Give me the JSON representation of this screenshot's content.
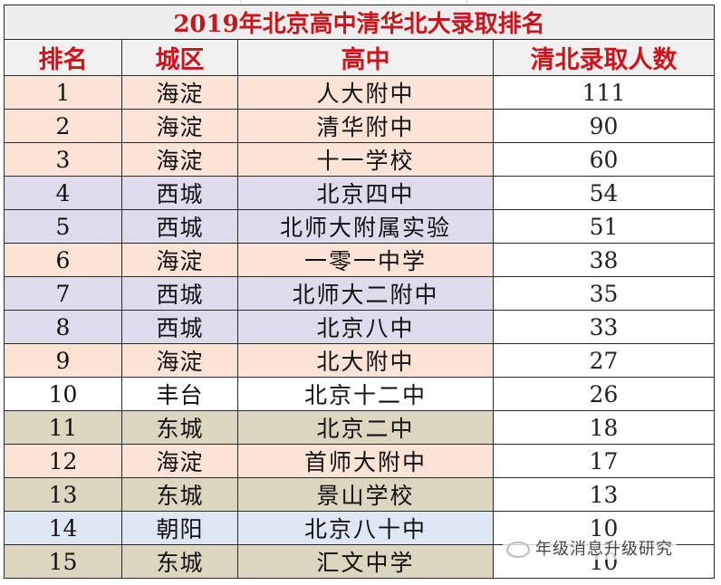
{
  "title": "2019年北京高中清华北大录取排名",
  "headers": {
    "rank": "排名",
    "district": "城区",
    "school": "高中",
    "count": "清北录取人数"
  },
  "colors": {
    "title_text": "#c8161d",
    "header_text": "#d0121b",
    "haidian_bg": "#fbe4d6",
    "xicheng_bg": "#dddcec",
    "fengtai_bg": "#ffffff",
    "dongcheng_bg": "#dcd5c0",
    "chaoyang_bg": "#dde8f4",
    "count_bg": "#ffffff"
  },
  "rows": [
    {
      "rank": "1",
      "district": "海淀",
      "school": "人大附中",
      "count": "111",
      "bg": "#fbe4d6"
    },
    {
      "rank": "2",
      "district": "海淀",
      "school": "清华附中",
      "count": "90",
      "bg": "#fbe4d6"
    },
    {
      "rank": "3",
      "district": "海淀",
      "school": "十一学校",
      "count": "60",
      "bg": "#fbe4d6"
    },
    {
      "rank": "4",
      "district": "西城",
      "school": "北京四中",
      "count": "54",
      "bg": "#dddcec"
    },
    {
      "rank": "5",
      "district": "西城",
      "school": "北师大附属实验",
      "count": "51",
      "bg": "#dddcec"
    },
    {
      "rank": "6",
      "district": "海淀",
      "school": "一零一中学",
      "count": "38",
      "bg": "#fbe4d6"
    },
    {
      "rank": "7",
      "district": "西城",
      "school": "北师大二附中",
      "count": "35",
      "bg": "#dddcec"
    },
    {
      "rank": "8",
      "district": "西城",
      "school": "北京八中",
      "count": "33",
      "bg": "#dddcec"
    },
    {
      "rank": "9",
      "district": "海淀",
      "school": "北大附中",
      "count": "27",
      "bg": "#fbe4d6"
    },
    {
      "rank": "10",
      "district": "丰台",
      "school": "北京十二中",
      "count": "26",
      "bg": "#ffffff"
    },
    {
      "rank": "11",
      "district": "东城",
      "school": "北京二中",
      "count": "18",
      "bg": "#dcd5c0"
    },
    {
      "rank": "12",
      "district": "海淀",
      "school": "首师大附中",
      "count": "17",
      "bg": "#fbe4d6"
    },
    {
      "rank": "13",
      "district": "东城",
      "school": "景山学校",
      "count": "13",
      "bg": "#dcd5c0"
    },
    {
      "rank": "14",
      "district": "朝阳",
      "school": "北京八十中",
      "count": "10",
      "bg": "#dde8f4"
    },
    {
      "rank": "15",
      "district": "东城",
      "school": "汇文中学",
      "count": "10",
      "bg": "#dcd5c0"
    }
  ],
  "watermark": {
    "text": "年级消息升级研究"
  }
}
